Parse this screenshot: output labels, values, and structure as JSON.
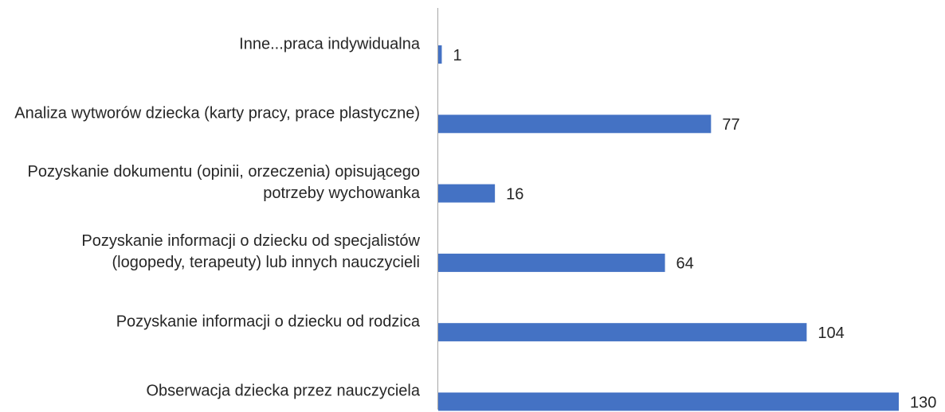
{
  "chart_data": {
    "type": "bar",
    "orientation": "horizontal",
    "categories": [
      "Inne...praca indywidualna",
      "Analiza wytworów dziecka (karty pracy, prace plastyczne)",
      "Pozyskanie dokumentu (opinii, orzeczenia) opisującego potrzeby wychowanka",
      "Pozyskanie informacji o dziecku od specjalistów (logopedy, terapeuty) lub innych nauczycieli",
      "Pozyskanie informacji o dziecku od rodzica",
      "Obserwacja dziecka przez nauczyciela"
    ],
    "values": [
      1,
      77,
      16,
      64,
      104,
      130
    ],
    "color": "#4472c4"
  }
}
